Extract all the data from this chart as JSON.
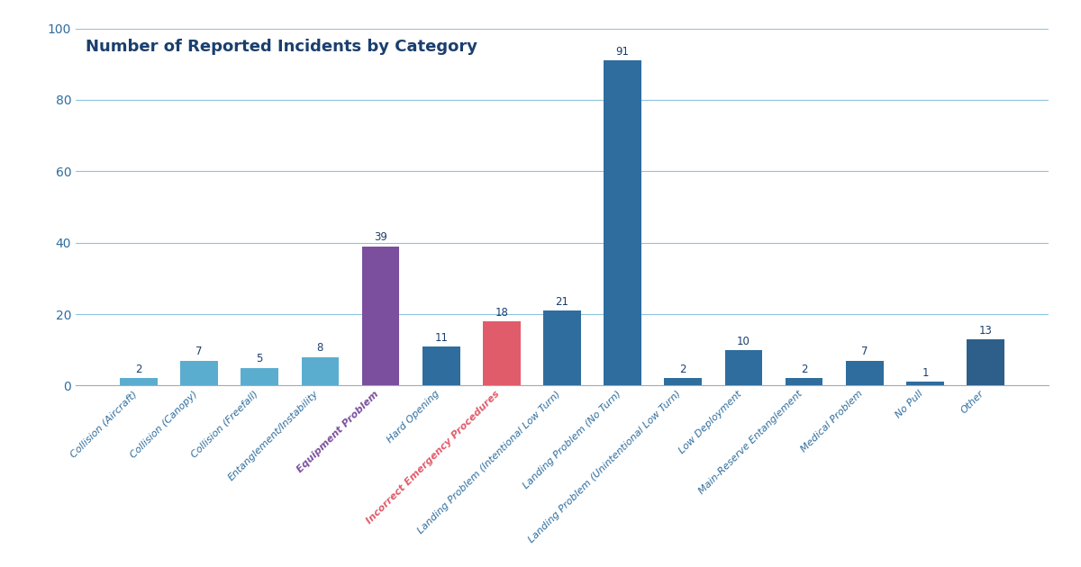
{
  "tick_labels": [
    "Collision (Aircraft)",
    "Collision (Canopy)",
    "Collision (Freefall)",
    "Entanglement/Instability",
    "Equipment Problem",
    "Hard Opening",
    "Incorrect Emergency Procedures",
    "Landing Problem (Intentional Low Turn)",
    "Landing Problem (No Turn)",
    "Landing Problem (Unintentional Low Turn)",
    "Low Deployment",
    "Main-Reserve Entanglement",
    "Medical Problem",
    "No Pull",
    "Other"
  ],
  "values": [
    2,
    7,
    5,
    8,
    39,
    11,
    18,
    21,
    91,
    2,
    10,
    2,
    7,
    1,
    13
  ],
  "bar_colors": [
    "#5badd0",
    "#5badd0",
    "#5badd0",
    "#5badd0",
    "#7b4f9e",
    "#2e6d9e",
    "#e05c6a",
    "#2e6d9e",
    "#2e6d9e",
    "#2e6d9e",
    "#2e6d9e",
    "#2e6d9e",
    "#2e6d9e",
    "#2e6d9e",
    "#2e5f8a"
  ],
  "title": "Number of Reported Incidents by Category",
  "title_color": "#1a3f6e",
  "title_fontsize": 13,
  "ylim": [
    0,
    100
  ],
  "yticks": [
    0,
    20,
    40,
    60,
    80,
    100
  ],
  "grid_color": "#5badd0",
  "background_color": "#ffffff",
  "label_fontsize": 8,
  "value_fontsize": 8.5,
  "tick_label_color": "#2e6d9e",
  "equipment_label_color": "#7b4f9e",
  "incorrect_label_color": "#e05c6a"
}
